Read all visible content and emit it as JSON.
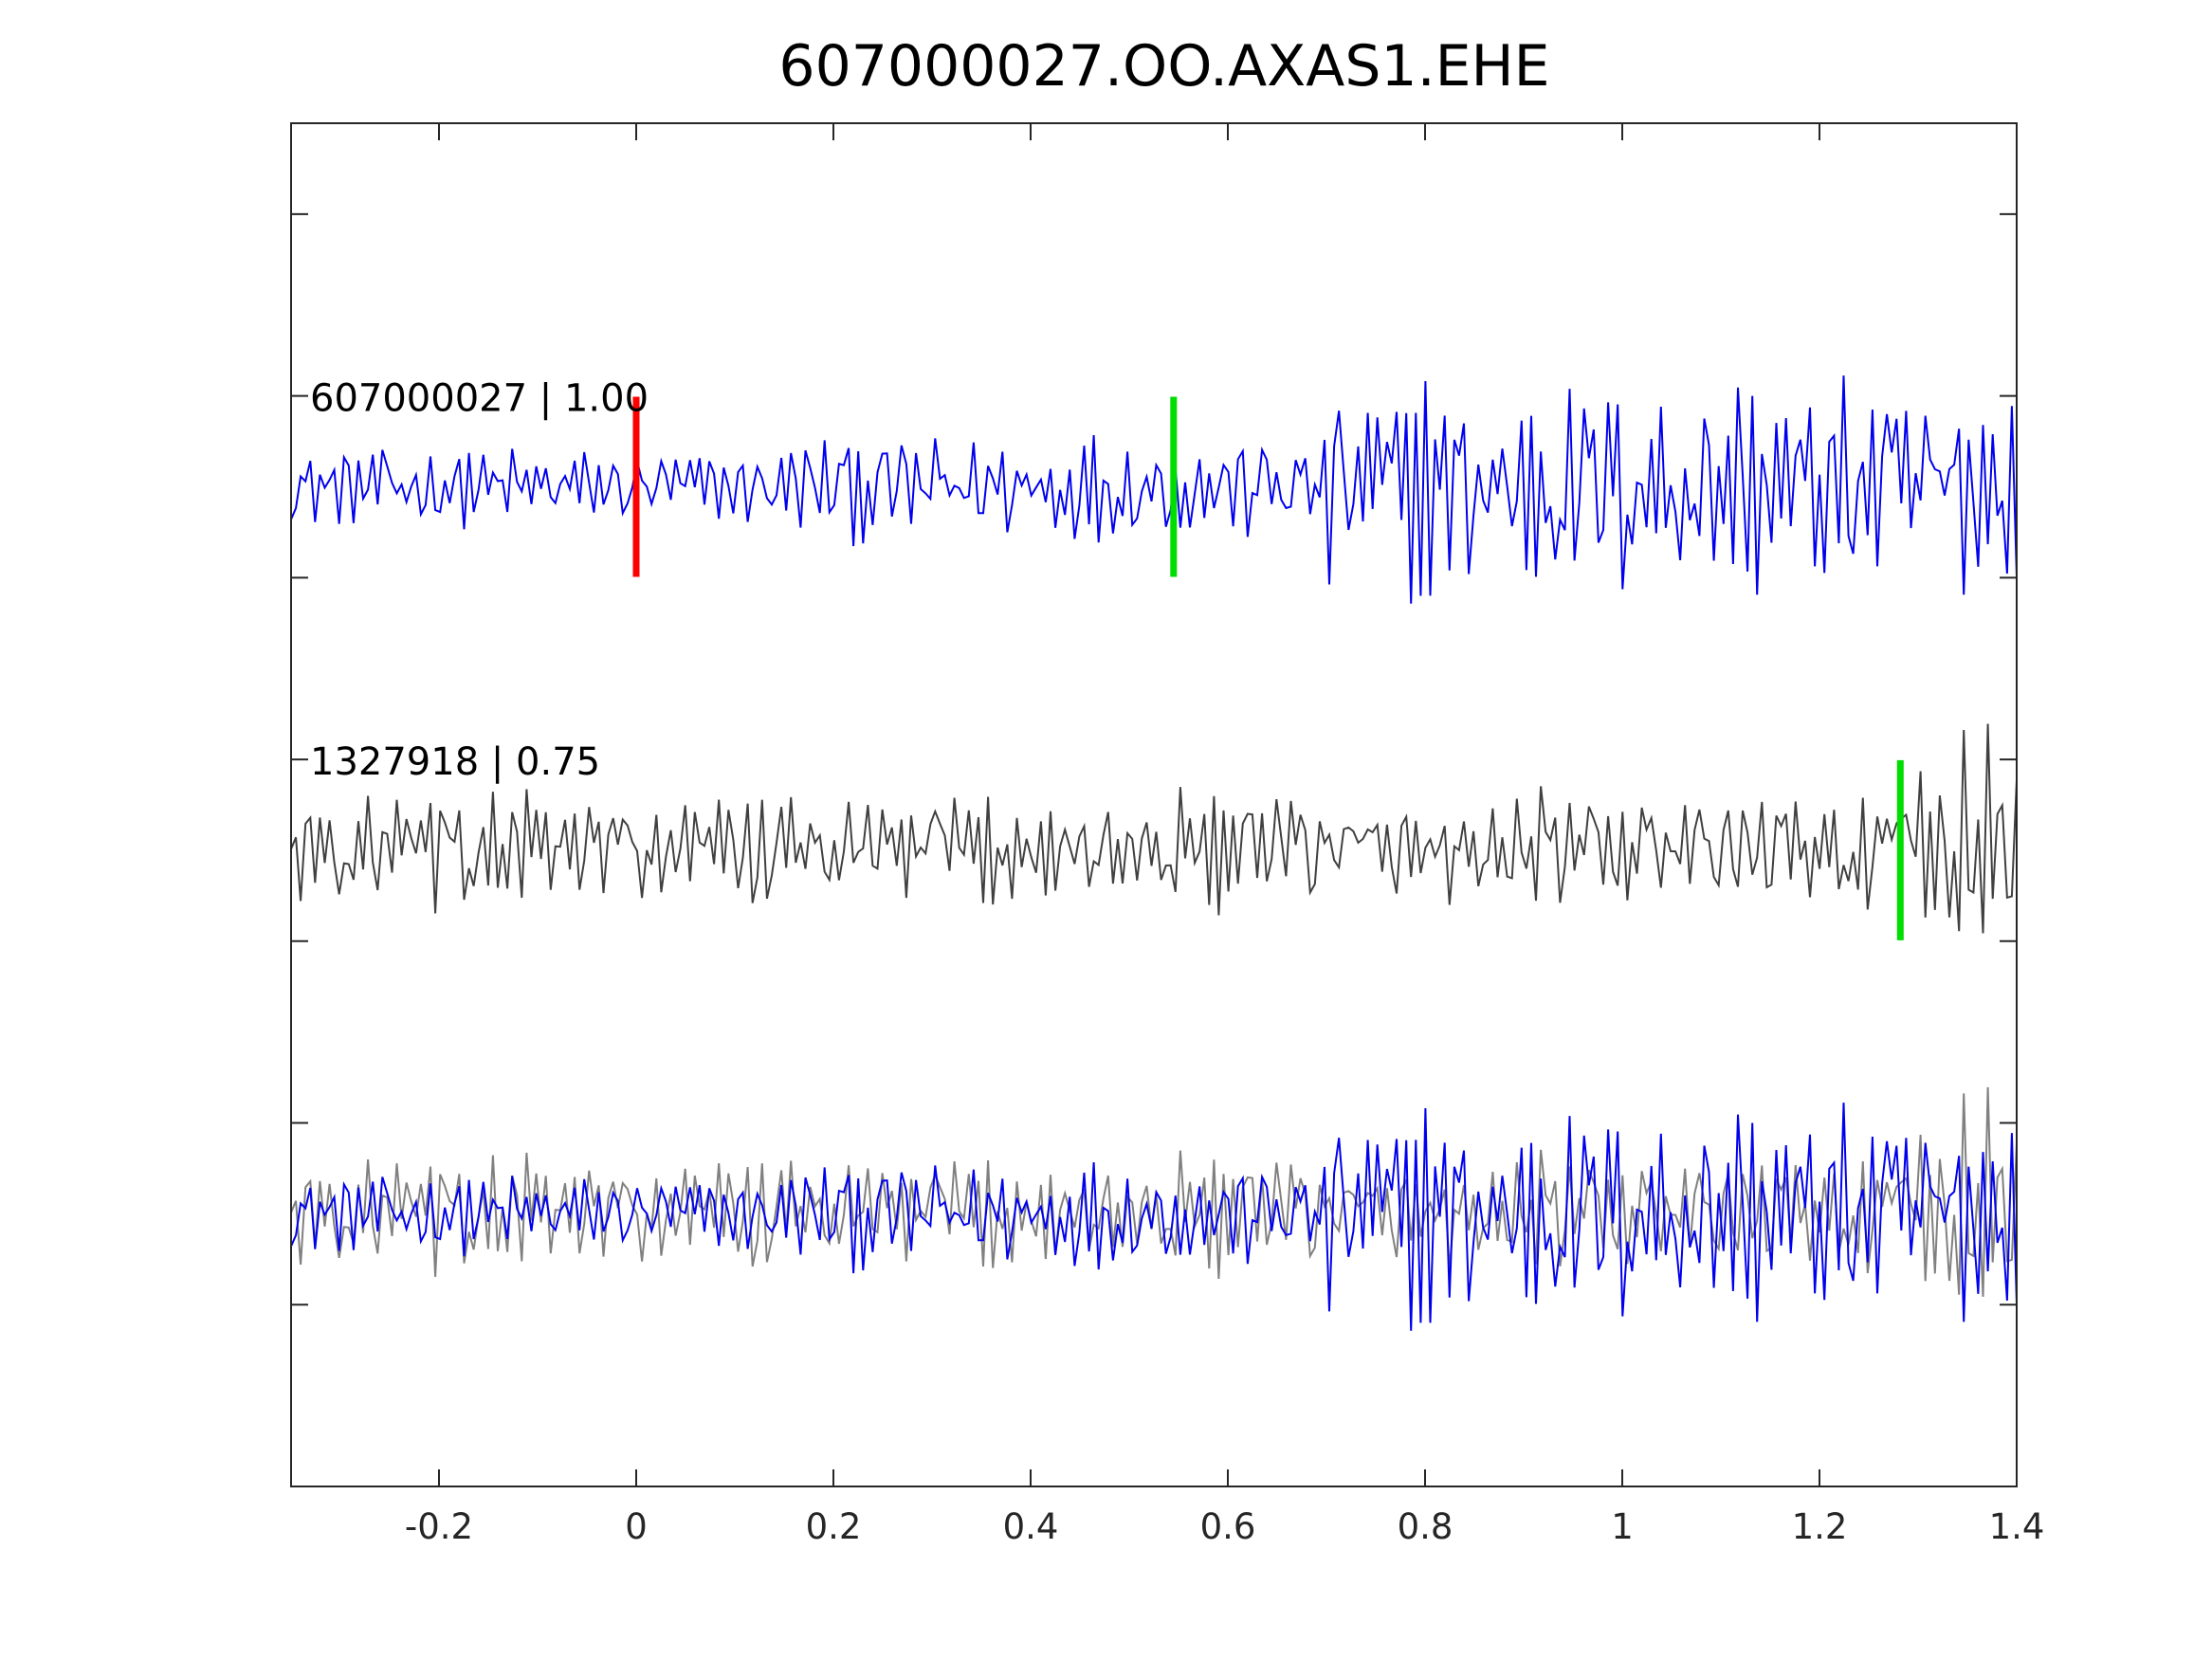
{
  "title": "607000027.OO.AXAS1.EHE",
  "chart_data": {
    "type": "line",
    "title": "607000027.OO.AXAS1.EHE",
    "xlabel": "",
    "ylabel": "",
    "xlim": [
      -0.35,
      1.4
    ],
    "x_ticks": [
      -0.2,
      0,
      0.2,
      0.4,
      0.6,
      0.8,
      1,
      1.2,
      1.4
    ],
    "x_tick_labels": [
      "-0.2",
      "0",
      "0.2",
      "0.4",
      "0.6",
      "0.8",
      "1",
      "1.2",
      "1.4"
    ],
    "y_tick_count": 7,
    "grid": false,
    "traces": [
      {
        "label": "607000027 | 1.00",
        "color": "#0000ee",
        "role": "template"
      },
      {
        "label": "1327918 | 0.75",
        "color": "#404040",
        "role": "detection"
      }
    ],
    "overlay_colors": {
      "template": "#0000ee",
      "detection": "#808080"
    },
    "pick_markers": [
      {
        "trace": 0,
        "x": 0.0,
        "color": "#ff0000"
      },
      {
        "trace": 0,
        "x": 0.545,
        "color": "#00dd00"
      },
      {
        "trace": 1,
        "x": 1.282,
        "color": "#00dd00"
      }
    ]
  }
}
